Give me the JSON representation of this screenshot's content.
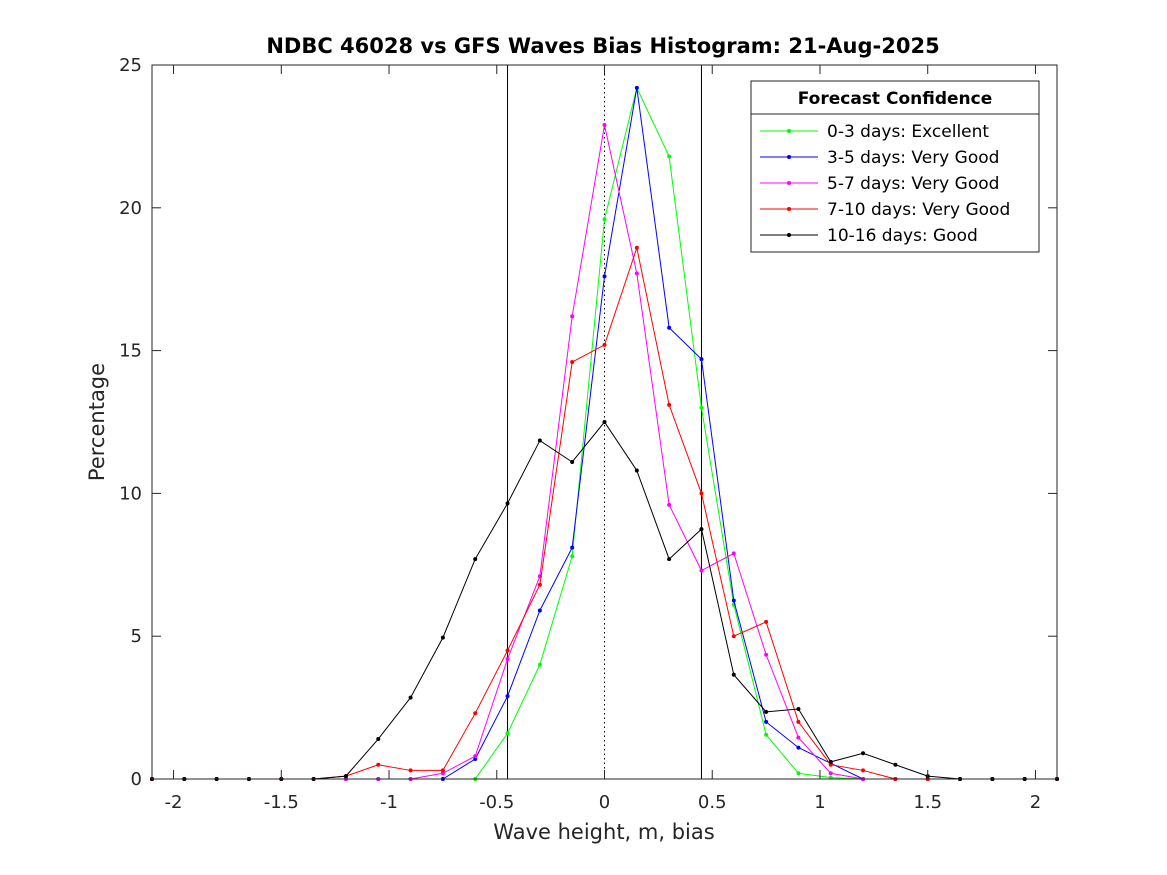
{
  "chart_data": {
    "type": "line",
    "title": "NDBC 46028 vs GFS Waves Bias Histogram: 21-Aug-2025",
    "xlabel": "Wave height, m, bias",
    "ylabel": "Percentage",
    "xlim": [
      -2.1,
      2.1
    ],
    "ylim": [
      0,
      25
    ],
    "xticks": [
      -2,
      -1.5,
      -1,
      -0.5,
      0,
      0.5,
      1,
      1.5,
      2
    ],
    "xtick_labels": [
      "-2",
      "-1.5",
      "-1",
      "-0.5",
      "0",
      "0.5",
      "1",
      "1.5",
      "2"
    ],
    "yticks": [
      0,
      5,
      10,
      15,
      20,
      25
    ],
    "ytick_labels": [
      "0",
      "5",
      "10",
      "15",
      "20",
      "25"
    ],
    "grid": false,
    "reference_lines": [
      {
        "x": -0.45,
        "style": "solid"
      },
      {
        "x": 0,
        "style": "dotted"
      },
      {
        "x": 0.45,
        "style": "solid"
      }
    ],
    "legend": {
      "title": "Forecast Confidence",
      "placement": "top-right"
    },
    "x": [
      -2.1,
      -1.95,
      -1.8,
      -1.65,
      -1.5,
      -1.35,
      -1.2,
      -1.05,
      -0.9,
      -0.75,
      -0.6,
      -0.45,
      -0.3,
      -0.15,
      0,
      0.15,
      0.3,
      0.45,
      0.6,
      0.75,
      0.9,
      1.05,
      1.2,
      1.35,
      1.5,
      1.65,
      1.8,
      1.95,
      2.1
    ],
    "series": [
      {
        "name": "0-3 days: Excellent",
        "color": "#00ff00",
        "values": [
          0,
          0,
          0,
          0,
          0,
          0,
          0,
          0,
          0,
          0,
          0,
          1.6,
          4.0,
          7.8,
          19.6,
          24.2,
          21.8,
          13.0,
          6.1,
          1.55,
          0.2,
          0.05,
          0,
          0,
          0,
          0,
          0,
          0,
          0
        ]
      },
      {
        "name": "3-5 days: Very Good",
        "color": "#0000ff",
        "values": [
          0,
          0,
          0,
          0,
          0,
          0,
          0,
          0,
          0,
          0,
          0.7,
          2.9,
          5.9,
          8.1,
          17.6,
          24.2,
          15.8,
          14.7,
          6.25,
          2.0,
          1.1,
          0.55,
          0,
          0,
          0,
          0,
          0,
          0,
          0
        ]
      },
      {
        "name": "5-7 days: Very Good",
        "color": "#ff00ff",
        "values": [
          0,
          0,
          0,
          0,
          0,
          0,
          0,
          0,
          0,
          0.2,
          0.8,
          4.2,
          7.1,
          16.2,
          22.9,
          17.7,
          9.6,
          7.3,
          7.9,
          4.35,
          1.45,
          0.2,
          0,
          0,
          0,
          0,
          0,
          0,
          0
        ]
      },
      {
        "name": "7-10 days: Very Good",
        "color": "#ff0000",
        "values": [
          0,
          0,
          0,
          0,
          0,
          0,
          0.1,
          0.5,
          0.3,
          0.3,
          2.3,
          4.5,
          6.8,
          14.6,
          15.2,
          18.6,
          13.1,
          10.0,
          5.0,
          5.5,
          2.0,
          0.5,
          0.3,
          0,
          0,
          0,
          0,
          0,
          0
        ]
      },
      {
        "name": "10-16 days: Good",
        "color": "#000000",
        "values": [
          0,
          0,
          0,
          0,
          0,
          0,
          0.1,
          1.4,
          2.85,
          4.95,
          7.7,
          9.65,
          11.85,
          11.1,
          12.5,
          10.8,
          7.7,
          8.75,
          3.65,
          2.35,
          2.45,
          0.6,
          0.9,
          0.5,
          0.1,
          0,
          0,
          0,
          0
        ]
      }
    ]
  }
}
